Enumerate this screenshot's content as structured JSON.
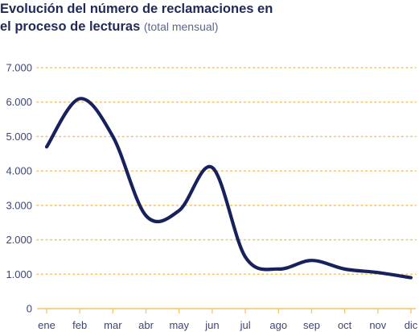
{
  "title_line1": "Evolución del número de reclamaciones en",
  "title_line2": "el proceso de lecturas",
  "subtitle": "(total mensual)",
  "colors": {
    "line": "#17215e",
    "grid": "#f2c66a",
    "text": "#3d4675",
    "title": "#1f2a5b"
  },
  "chart_data": {
    "type": "line",
    "title": "Evolución del número de reclamaciones en el proceso de lecturas",
    "subtitle": "(total mensual)",
    "xlabel": "",
    "ylabel": "",
    "categories": [
      "ene",
      "feb",
      "mar",
      "abr",
      "may",
      "jun",
      "jul",
      "ago",
      "sep",
      "oct",
      "nov",
      "dic"
    ],
    "y_ticks": [
      0,
      1000,
      2000,
      3000,
      4000,
      5000,
      6000,
      7000
    ],
    "y_tick_labels": [
      "0",
      "1.000",
      "2.000",
      "3.000",
      "4.000",
      "5.000",
      "6.000",
      "7.000"
    ],
    "ylim": [
      0,
      7000
    ],
    "grid": "horizontal dotted",
    "legend": "none",
    "series": [
      {
        "values": [
          4700,
          6100,
          5000,
          2700,
          2850,
          4100,
          1500,
          1150,
          1400,
          1150,
          1050,
          900
        ]
      }
    ]
  }
}
